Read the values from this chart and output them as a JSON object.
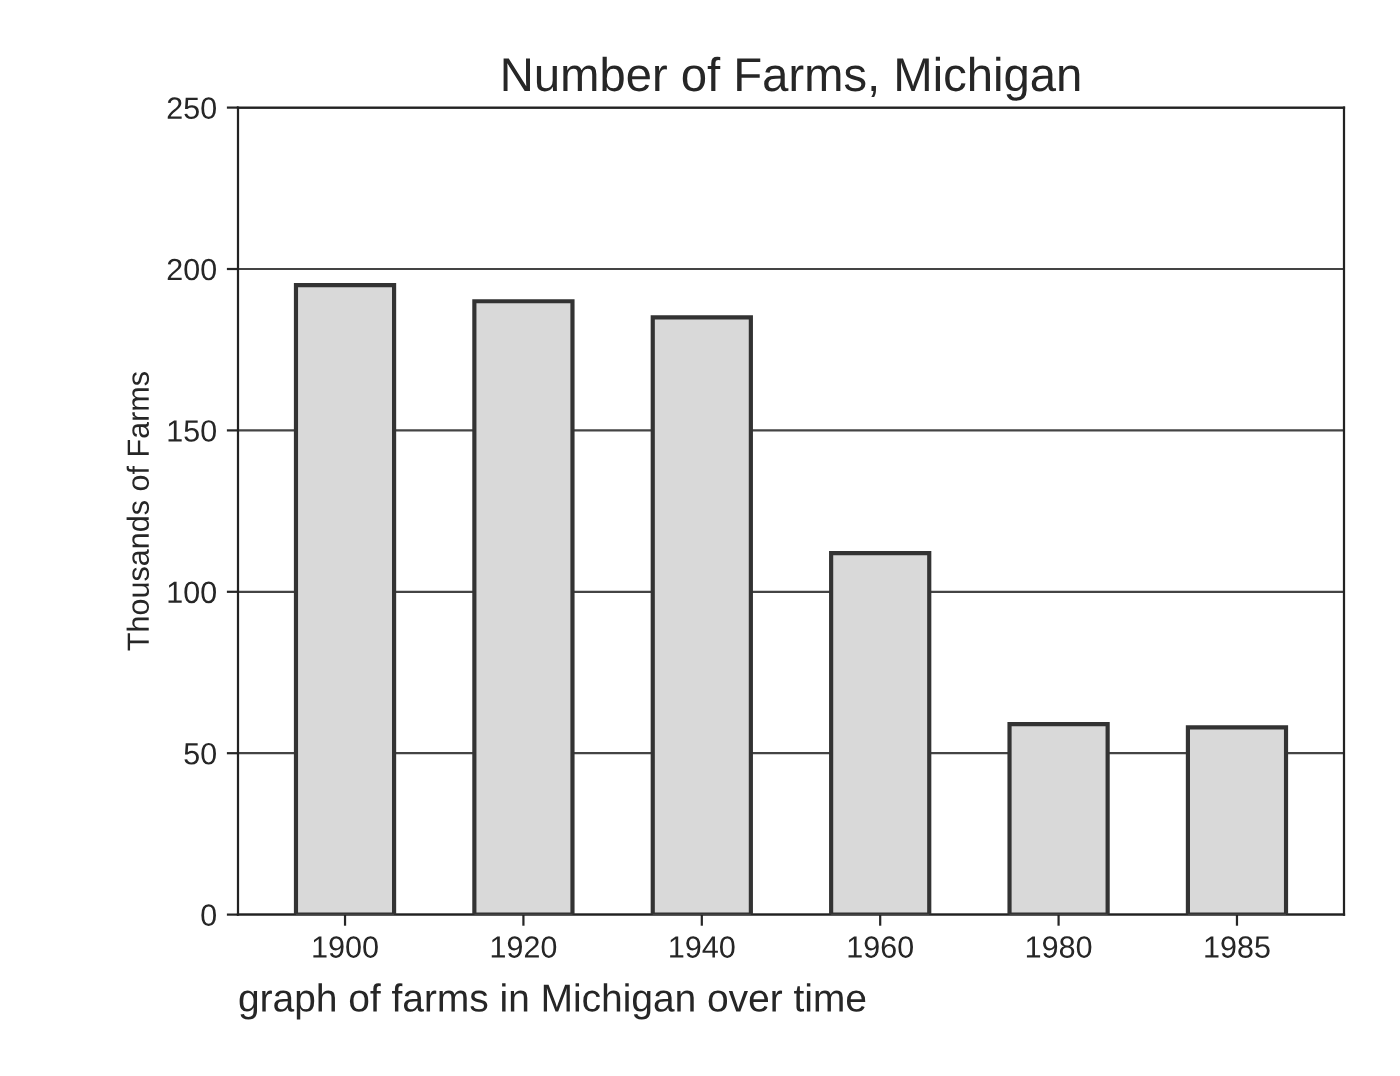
{
  "chart_data": {
    "type": "bar",
    "title": "Number of Farms, Michigan",
    "ylabel": "Thousands of Farms",
    "categories": [
      "1900",
      "1920",
      "1940",
      "1960",
      "1980",
      "1985"
    ],
    "values": [
      195,
      190,
      185,
      112,
      59,
      58
    ],
    "color": "#d9d9d9",
    "ylim": [
      0,
      250
    ],
    "yticks": [
      0,
      50,
      100,
      150,
      200,
      250
    ],
    "grid": "y",
    "annotations": [
      "graph of farms in Michigan over time"
    ]
  }
}
